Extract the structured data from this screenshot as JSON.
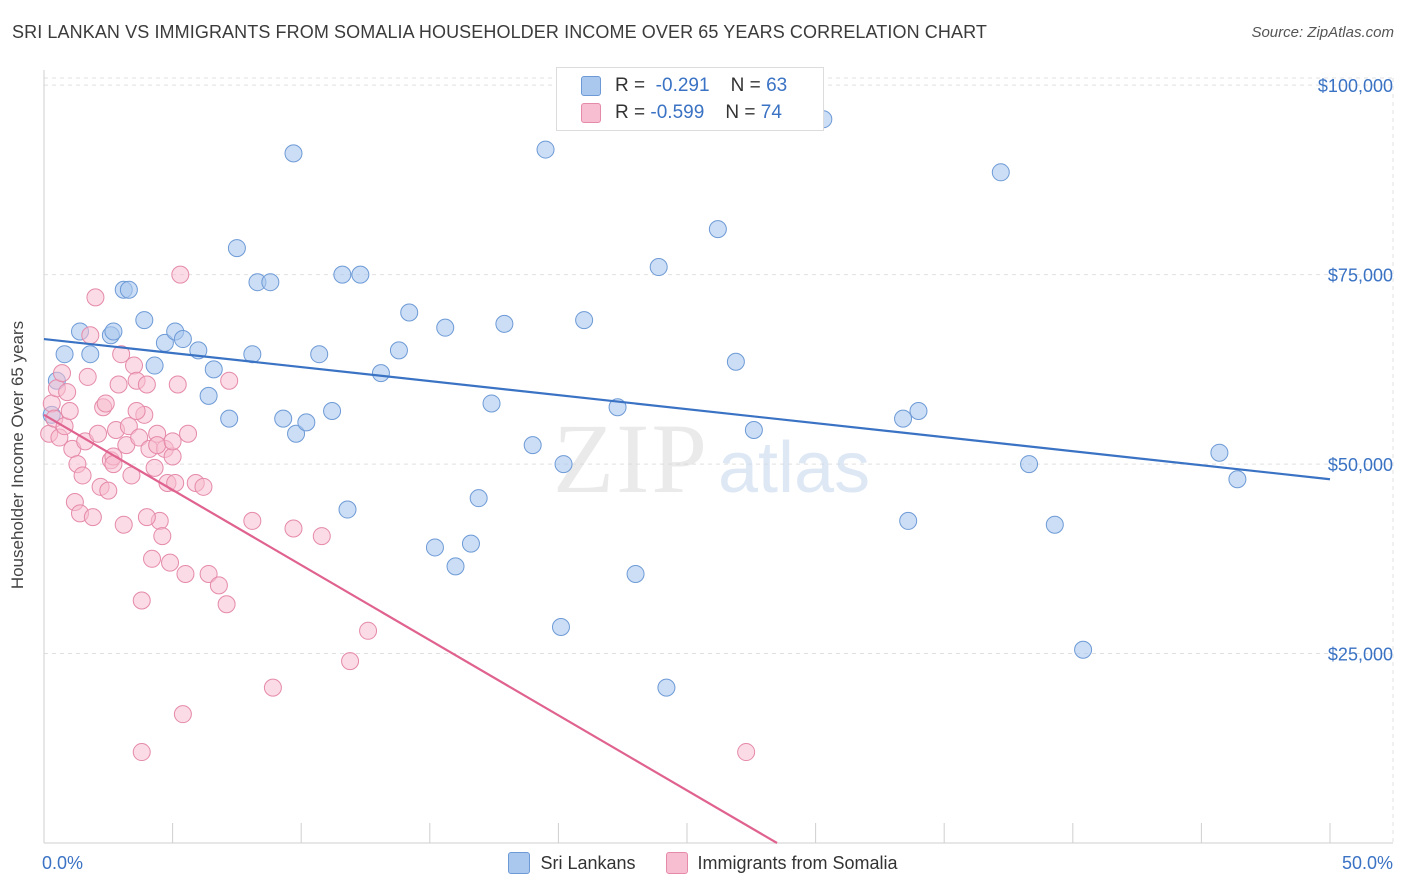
{
  "header": {
    "title": "SRI LANKAN VS IMMIGRANTS FROM SOMALIA HOUSEHOLDER INCOME OVER 65 YEARS CORRELATION CHART",
    "source": "Source: ZipAtlas.com"
  },
  "legend_top": {
    "r_label": "R =",
    "n_label": "N =",
    "rows": [
      {
        "r": "-0.291",
        "n": "63"
      },
      {
        "r": "-0.599",
        "n": "74"
      }
    ]
  },
  "watermark": {
    "zip": "ZIP",
    "atlas": "atlas"
  },
  "colors": {
    "blue_fill": "#aac8ee",
    "blue_stroke": "#6d9ad6",
    "blue_line": "#3a72c4",
    "pink_fill": "#f7bdd0",
    "pink_stroke": "#e58aa9",
    "pink_line": "#e0628f",
    "grid": "#e0e0e0",
    "tick_text": "#3a72c4"
  },
  "chart_data": {
    "type": "scatter",
    "title": "SRI LANKAN VS IMMIGRANTS FROM SOMALIA HOUSEHOLDER INCOME OVER 65 YEARS CORRELATION CHART",
    "xlabel": "",
    "ylabel": "Householder Income Over 65 years",
    "xlim": [
      0,
      50
    ],
    "ylim": [
      0,
      102000
    ],
    "x_tick_labels": [
      "0.0%",
      "50.0%"
    ],
    "y_ticks": [
      25000,
      50000,
      75000,
      100000
    ],
    "y_tick_labels": [
      "$25,000",
      "$50,000",
      "$75,000",
      "$100,000"
    ],
    "legend": [
      "Sri Lankans",
      "Immigrants from Somalia"
    ],
    "series": [
      {
        "name": "Sri Lankans",
        "trend": {
          "x0": 0,
          "y0": 66500,
          "x1": 50,
          "y1": 48000
        },
        "points": [
          [
            0.3,
            56500
          ],
          [
            0.5,
            61000
          ],
          [
            0.8,
            64500
          ],
          [
            1.4,
            67500
          ],
          [
            1.8,
            64500
          ],
          [
            2.6,
            67000
          ],
          [
            2.7,
            67500
          ],
          [
            3.1,
            73000
          ],
          [
            3.3,
            73000
          ],
          [
            3.9,
            69000
          ],
          [
            4.3,
            63000
          ],
          [
            4.7,
            66000
          ],
          [
            5.1,
            67500
          ],
          [
            5.4,
            66500
          ],
          [
            6.0,
            65000
          ],
          [
            6.4,
            59000
          ],
          [
            6.6,
            62500
          ],
          [
            7.2,
            56000
          ],
          [
            7.5,
            78500
          ],
          [
            8.1,
            64500
          ],
          [
            8.3,
            74000
          ],
          [
            8.8,
            74000
          ],
          [
            9.3,
            56000
          ],
          [
            9.7,
            91000
          ],
          [
            9.8,
            54000
          ],
          [
            10.2,
            55500
          ],
          [
            10.7,
            64500
          ],
          [
            11.2,
            57000
          ],
          [
            11.6,
            75000
          ],
          [
            12.3,
            75000
          ],
          [
            11.8,
            44000
          ],
          [
            13.1,
            62000
          ],
          [
            13.8,
            65000
          ],
          [
            14.2,
            70000
          ],
          [
            15.2,
            39000
          ],
          [
            15.6,
            68000
          ],
          [
            16.0,
            36500
          ],
          [
            16.6,
            39500
          ],
          [
            16.9,
            45500
          ],
          [
            17.4,
            58000
          ],
          [
            17.9,
            68500
          ],
          [
            19.0,
            52500
          ],
          [
            19.5,
            91500
          ],
          [
            20.1,
            28500
          ],
          [
            20.2,
            50000
          ],
          [
            21.0,
            69000
          ],
          [
            22.3,
            57500
          ],
          [
            23.0,
            35500
          ],
          [
            23.9,
            76000
          ],
          [
            24.2,
            20500
          ],
          [
            26.2,
            81000
          ],
          [
            26.9,
            63500
          ],
          [
            27.6,
            54500
          ],
          [
            30.3,
            95500
          ],
          [
            33.4,
            56000
          ],
          [
            33.6,
            42500
          ],
          [
            34.0,
            57000
          ],
          [
            37.2,
            88500
          ],
          [
            38.3,
            50000
          ],
          [
            39.3,
            42000
          ],
          [
            40.4,
            25500
          ],
          [
            45.7,
            51500
          ],
          [
            46.4,
            48000
          ]
        ]
      },
      {
        "name": "Immigrants from Somalia",
        "trend": {
          "x0": 0,
          "y0": 56500,
          "x1": 28.5,
          "y1": 0
        },
        "points": [
          [
            0.2,
            54000
          ],
          [
            0.3,
            58000
          ],
          [
            0.4,
            56000
          ],
          [
            0.5,
            60000
          ],
          [
            0.6,
            53500
          ],
          [
            0.7,
            62000
          ],
          [
            0.8,
            55000
          ],
          [
            0.9,
            59500
          ],
          [
            1.0,
            57000
          ],
          [
            1.1,
            52000
          ],
          [
            1.2,
            45000
          ],
          [
            1.3,
            50000
          ],
          [
            1.4,
            43500
          ],
          [
            1.5,
            48500
          ],
          [
            1.6,
            53000
          ],
          [
            1.7,
            61500
          ],
          [
            1.8,
            67000
          ],
          [
            1.9,
            43000
          ],
          [
            2.0,
            72000
          ],
          [
            2.1,
            54000
          ],
          [
            2.2,
            47000
          ],
          [
            2.3,
            57500
          ],
          [
            2.4,
            58000
          ],
          [
            2.5,
            46500
          ],
          [
            2.6,
            50500
          ],
          [
            2.7,
            51000
          ],
          [
            2.8,
            54500
          ],
          [
            2.9,
            60500
          ],
          [
            3.0,
            64500
          ],
          [
            3.1,
            42000
          ],
          [
            3.2,
            52500
          ],
          [
            3.3,
            55000
          ],
          [
            3.4,
            48500
          ],
          [
            3.5,
            63000
          ],
          [
            3.6,
            61000
          ],
          [
            3.7,
            53500
          ],
          [
            3.8,
            32000
          ],
          [
            3.9,
            56500
          ],
          [
            4.0,
            60500
          ],
          [
            4.1,
            52000
          ],
          [
            4.2,
            37500
          ],
          [
            4.3,
            49500
          ],
          [
            4.4,
            54000
          ],
          [
            4.5,
            42500
          ],
          [
            4.6,
            40500
          ],
          [
            4.7,
            52000
          ],
          [
            4.8,
            47500
          ],
          [
            4.9,
            37000
          ],
          [
            5.0,
            51000
          ],
          [
            5.1,
            47500
          ],
          [
            5.2,
            60500
          ],
          [
            5.3,
            75000
          ],
          [
            5.4,
            17000
          ],
          [
            5.5,
            35500
          ],
          [
            5.6,
            54000
          ],
          [
            5.9,
            47500
          ],
          [
            6.2,
            47000
          ],
          [
            6.4,
            35500
          ],
          [
            6.8,
            34000
          ],
          [
            7.1,
            31500
          ],
          [
            7.2,
            61000
          ],
          [
            8.1,
            42500
          ],
          [
            8.9,
            20500
          ],
          [
            9.7,
            41500
          ],
          [
            10.8,
            40500
          ],
          [
            11.9,
            24000
          ],
          [
            12.6,
            28000
          ],
          [
            4.4,
            52500
          ],
          [
            4.0,
            43000
          ],
          [
            3.8,
            12000
          ],
          [
            5.0,
            53000
          ],
          [
            27.3,
            12000
          ],
          [
            2.7,
            50000
          ],
          [
            3.6,
            57000
          ]
        ]
      }
    ]
  },
  "legend_bottom": {
    "series_a": "Sri Lankans",
    "series_b": "Immigrants from Somalia"
  }
}
